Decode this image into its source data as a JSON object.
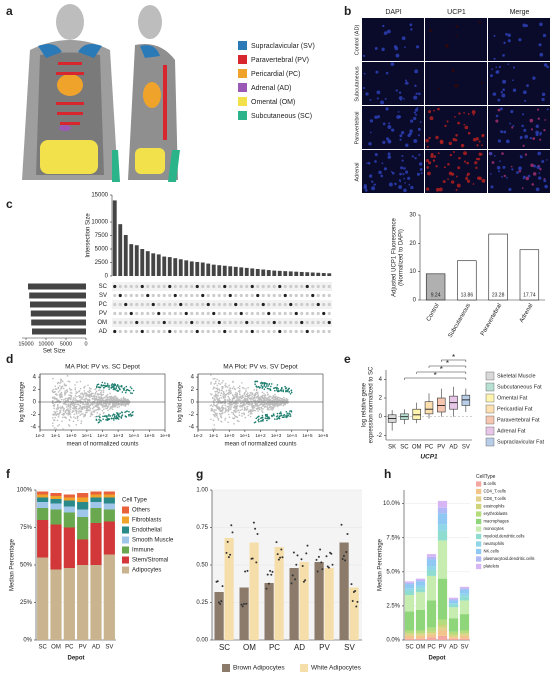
{
  "panel_labels": [
    "a",
    "b",
    "c",
    "d",
    "e",
    "f",
    "g",
    "h"
  ],
  "anatomy": {
    "legend": [
      {
        "name": "Supraclavicular (SV)",
        "color": "#2a7ab8"
      },
      {
        "name": "Paravertebral (PV)",
        "color": "#d7262e"
      },
      {
        "name": "Pericardial (PC)",
        "color": "#f0a32b"
      },
      {
        "name": "Adrenal (AD)",
        "color": "#9b59b6"
      },
      {
        "name": "Omental (OM)",
        "color": "#f2e14b"
      },
      {
        "name": "Subcutaneous (SC)",
        "color": "#2bb38a"
      }
    ]
  },
  "microscopy": {
    "columns": [
      "DAPI",
      "UCP1",
      "Merge"
    ],
    "rows": [
      "Control (AD)",
      "Subcutaneous",
      "Paravertebral",
      "Adrenal"
    ]
  },
  "chart_data": [
    {
      "type": "bar",
      "y_label": [
        "Adjusted UCP1 Fluorescence",
        "(Normalized to DAPI)"
      ],
      "categories": [
        "Control",
        "Subcutaneous",
        "Paravertebral",
        "Adrenal"
      ],
      "values": [
        9.24,
        13.86,
        23.28,
        17.74
      ],
      "colors": [
        "#b0b0b0",
        "#ffffff",
        "#ffffff",
        "#ffffff"
      ],
      "ylim": [
        0,
        30
      ],
      "yticks": [
        0,
        10,
        20,
        30
      ]
    },
    {
      "type": "upset",
      "y_label": "Intersection Size",
      "values": [
        14000,
        9600,
        7600,
        5900,
        5700,
        5000,
        4600,
        4200,
        4000,
        3600,
        3500,
        3300,
        3100,
        2900,
        2700,
        2600,
        2500,
        2300,
        2100,
        2000,
        1900,
        1800,
        1700,
        1600,
        1500,
        1400,
        1300,
        1200,
        1100,
        1000,
        950,
        900,
        850,
        800,
        750,
        700,
        650,
        600,
        550,
        500
      ],
      "ylim": [
        0,
        15000
      ],
      "yticks": [
        0,
        2500,
        5000,
        7500,
        10000,
        15000
      ],
      "sets": [
        "SC",
        "SV",
        "PC",
        "PV",
        "OM",
        "AD"
      ],
      "set_sizes": [
        14500,
        14200,
        14000,
        13800,
        13700,
        13500
      ],
      "x_label": "Set Size",
      "xlim": [
        0,
        16000
      ],
      "xticks": [
        15000,
        10000,
        5000,
        0
      ]
    },
    {
      "type": "ma",
      "title": "MA Plot: PV vs. SC Depot",
      "x_label": "mean of normalized counts",
      "y_label": "log fold change",
      "log_x": true,
      "xlim": [
        0.01,
        1000000
      ],
      "xticks": [
        {
          "value": 0.01,
          "label": "1e-2"
        },
        {
          "value": 0.1,
          "label": "1e-1"
        },
        {
          "value": 1,
          "label": "1e+0"
        },
        {
          "value": 10,
          "label": "1e+1"
        },
        {
          "value": 100,
          "label": "1e+2"
        },
        {
          "value": 1000,
          "label": "1e+3"
        },
        {
          "value": 10000,
          "label": "1e+4"
        },
        {
          "value": 100000,
          "label": "1e+5"
        },
        {
          "value": 1000000,
          "label": "1e+6"
        }
      ],
      "ylim": [
        -4.5,
        4.5
      ],
      "yticks": [
        -4,
        -2,
        0,
        2,
        4
      ]
    },
    {
      "type": "ma",
      "title": "MA Plot: PV vs. SV Depot",
      "x_label": "mean of normalized counts",
      "y_label": "log fold change",
      "log_x": true,
      "xlim": [
        0.01,
        1000000
      ],
      "xticks": [
        {
          "value": 0.01,
          "label": "1e-2"
        },
        {
          "value": 0.1,
          "label": "1e-1"
        },
        {
          "value": 1,
          "label": "1e+0"
        },
        {
          "value": 10,
          "label": "1e+1"
        },
        {
          "value": 100,
          "label": "1e+2"
        },
        {
          "value": 1000,
          "label": "1e+3"
        },
        {
          "value": 10000,
          "label": "1e+4"
        },
        {
          "value": 100000,
          "label": "1e+5"
        },
        {
          "value": 1000000,
          "label": "1e+6"
        }
      ],
      "ylim": [
        -4.5,
        4.5
      ],
      "yticks": [
        -4,
        -2,
        0,
        2,
        4
      ]
    },
    {
      "type": "box",
      "y_label": [
        "log relative gene",
        "expression normalized to SC"
      ],
      "x_label": "UCP1",
      "categories": [
        "SK",
        "SC",
        "OM",
        "PC",
        "PV",
        "AD",
        "SV"
      ],
      "boxes": [
        {
          "min": -1.5,
          "q1": -0.6,
          "median": -0.2,
          "q3": 0.2,
          "max": 0.7
        },
        {
          "min": -0.8,
          "q1": -0.3,
          "median": 0,
          "q3": 0.3,
          "max": 0.8
        },
        {
          "min": -0.7,
          "q1": -0.3,
          "median": 0.2,
          "q3": 0.8,
          "max": 1.5
        },
        {
          "min": -0.2,
          "q1": 0.3,
          "median": 0.8,
          "q3": 1.6,
          "max": 2.5
        },
        {
          "min": 0,
          "q1": 0.5,
          "median": 1.2,
          "q3": 2,
          "max": 3
        },
        {
          "min": 0,
          "q1": 0.8,
          "median": 1.5,
          "q3": 2.2,
          "max": 3.2
        },
        {
          "min": 0.5,
          "q1": 1.2,
          "median": 1.8,
          "q3": 2.3,
          "max": 3
        }
      ],
      "colors": [
        "#d9d9d9",
        "#b8e0d2",
        "#fff3b0",
        "#fde0b0",
        "#f7c6b0",
        "#e8c6e8",
        "#b7cde8"
      ],
      "legend": [
        "Skeletal Muscle",
        "Subcutaneous Fat",
        "Omental Fat",
        "Pericardial Fat",
        "Paravertebral Fat",
        "Adrenal Fat",
        "Supraclavicular Fat"
      ],
      "annotations": [
        "*",
        "*",
        "*",
        "*"
      ],
      "ylim": [
        -2.5,
        5
      ],
      "yticks": [
        -2,
        0,
        2,
        4
      ]
    },
    {
      "type": "stacked_bar",
      "y_label": "Median Percentage",
      "x_label": "Depot",
      "legend_title": "Cell Type",
      "categories": [
        "SC",
        "OM",
        "PC",
        "PV",
        "AD",
        "SV"
      ],
      "series": [
        {
          "name": "Adipocytes",
          "color": "#c9b48f",
          "values": [
            55,
            47,
            48,
            50,
            50,
            57
          ]
        },
        {
          "name": "Stem/Stromal",
          "color": "#d2383a",
          "values": [
            25,
            30,
            27,
            17,
            28,
            22
          ]
        },
        {
          "name": "Immune",
          "color": "#6aa84f",
          "values": [
            8,
            10,
            10,
            15,
            10,
            8
          ]
        },
        {
          "name": "Smooth Muscle",
          "color": "#9fc5e8",
          "values": [
            4,
            4,
            4,
            5,
            4,
            4
          ]
        },
        {
          "name": "Endothelial",
          "color": "#2a8a8a",
          "values": [
            3,
            3,
            4,
            5,
            3,
            4
          ]
        },
        {
          "name": "Fibroblasts",
          "color": "#f0a32b",
          "values": [
            2,
            2,
            2,
            3,
            2,
            2
          ]
        },
        {
          "name": "Others",
          "color": "#e8613a",
          "values": [
            2,
            2,
            2,
            3,
            2,
            2
          ]
        }
      ],
      "legend_order": "reverse",
      "ylim": [
        0,
        100
      ],
      "yticks": [
        {
          "value": 0,
          "label": "0%"
        },
        {
          "value": 25,
          "label": "25%"
        },
        {
          "value": 50,
          "label": "50%"
        },
        {
          "value": 75,
          "label": "75%"
        },
        {
          "value": 100,
          "label": "100%"
        }
      ]
    },
    {
      "type": "grouped_bar",
      "categories": [
        "SC",
        "OM",
        "PC",
        "AD",
        "PV",
        "SV"
      ],
      "series": [
        {
          "name": "Brown Adipocytes",
          "color": "#8c7b6b",
          "values": [
            0.32,
            0.35,
            0.38,
            0.48,
            0.52,
            0.65
          ]
        },
        {
          "name": "White Adipocytes",
          "color": "#f6deaa",
          "values": [
            0.68,
            0.65,
            0.62,
            0.52,
            0.48,
            0.35
          ]
        }
      ],
      "ylim": [
        0,
        1
      ],
      "yticks": [
        {
          "value": 0,
          "label": "0.00"
        },
        {
          "value": 0.25,
          "label": "0.25"
        },
        {
          "value": 0.5,
          "label": "0.50"
        },
        {
          "value": 0.75,
          "label": "0.75"
        },
        {
          "value": 1,
          "label": "1.00"
        }
      ]
    },
    {
      "type": "stacked_bar",
      "y_label": "Median Percentage",
      "x_label": "Depot",
      "legend_title": "CellType",
      "categories": [
        "SC",
        "OM",
        "PC",
        "PV",
        "AD",
        "SV"
      ],
      "series": [
        {
          "name": "B.cells",
          "color": "#f4a6a0",
          "values": [
            0.1,
            0.1,
            0.2,
            0.3,
            0.1,
            0.1
          ]
        },
        {
          "name": "CD4_T.cells",
          "color": "#f2c48a",
          "values": [
            0.2,
            0.2,
            0.2,
            0.4,
            0.1,
            0.2
          ]
        },
        {
          "name": "CD8_T.cells",
          "color": "#e3d08a",
          "values": [
            0.1,
            0.1,
            0.1,
            0.2,
            0.1,
            0.1
          ]
        },
        {
          "name": "eosinophils",
          "color": "#cfd47a",
          "values": [
            0.1,
            0.1,
            0.1,
            0.2,
            0.1,
            0.1
          ]
        },
        {
          "name": "erythroblasts",
          "color": "#b5dc7c",
          "values": [
            0.2,
            0.2,
            0.3,
            0.4,
            0.2,
            0.2
          ]
        },
        {
          "name": "macrophages",
          "color": "#8fd67a",
          "values": [
            1.4,
            1.5,
            2.0,
            3.0,
            1.0,
            1.2
          ]
        },
        {
          "name": "monocytes",
          "color": "#c6ecb0",
          "values": [
            1.2,
            1.3,
            1.8,
            2.8,
            0.8,
            1.0
          ]
        },
        {
          "name": "myeloid.dendritic.cells",
          "color": "#8fdcd0",
          "values": [
            0.3,
            0.3,
            0.4,
            0.7,
            0.2,
            0.3
          ]
        },
        {
          "name": "neutrophils",
          "color": "#8fd6e8",
          "values": [
            0.2,
            0.2,
            0.3,
            0.5,
            0.1,
            0.2
          ]
        },
        {
          "name": "NK.cells",
          "color": "#8fc8f2",
          "values": [
            0.3,
            0.3,
            0.5,
            0.8,
            0.2,
            0.3
          ]
        },
        {
          "name": "plasmacytoid.dendritic.cells",
          "color": "#b0b8f5",
          "values": [
            0.1,
            0.1,
            0.2,
            0.4,
            0.1,
            0.1
          ]
        },
        {
          "name": "platelets",
          "color": "#d7b5f5",
          "values": [
            0.1,
            0.1,
            0.2,
            0.5,
            0.1,
            0.1
          ]
        }
      ],
      "legend_order": "forward",
      "ylim": [
        0,
        11
      ],
      "yticks": [
        {
          "value": 0,
          "label": "0.0%"
        },
        {
          "value": 2.5,
          "label": "2.5%"
        },
        {
          "value": 5,
          "label": "5.0%"
        },
        {
          "value": 7.5,
          "label": "7.5%"
        },
        {
          "value": 10,
          "label": "10.0%"
        }
      ]
    }
  ]
}
